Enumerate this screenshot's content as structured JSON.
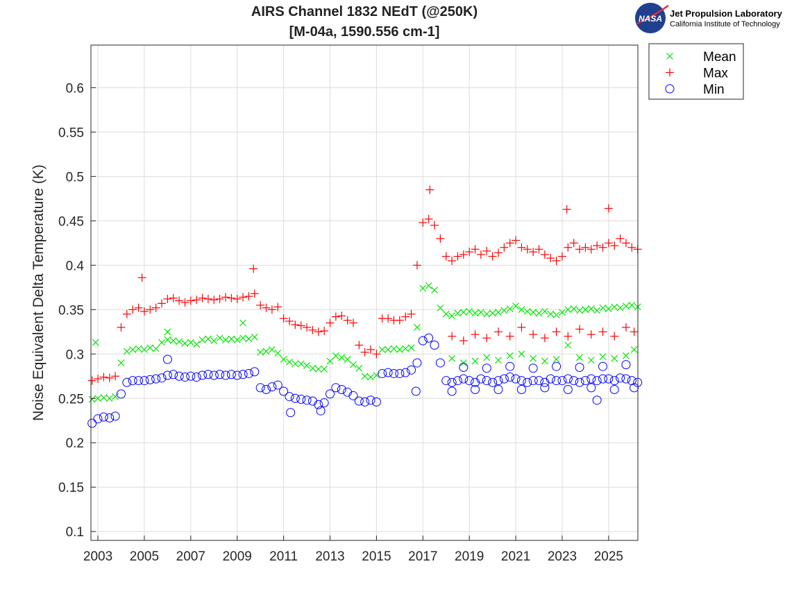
{
  "logo": {
    "org": "Jet Propulsion Laboratory",
    "sub": "California Institute of Technology",
    "badge": "NASA"
  },
  "chart_data": {
    "type": "scatter",
    "title": [
      "AIRS Channel 1832 NEdT (@250K)",
      "[M-04a, 1590.556 cm-1]"
    ],
    "xlabel": "",
    "ylabel": "Noise Equivalent Delta Temperature (K)",
    "xlim": [
      2002.7,
      2026.26
    ],
    "ylim": [
      0.09,
      0.648
    ],
    "xticks": [
      2003,
      2005,
      2007,
      2009,
      2011,
      2013,
      2015,
      2017,
      2019,
      2021,
      2023,
      2025
    ],
    "yticks": [
      0.1,
      0.15,
      0.2,
      0.25,
      0.3,
      0.35,
      0.4,
      0.45,
      0.5,
      0.55,
      0.6
    ],
    "ytick_labels": [
      "0.1",
      "0.15",
      "0.2",
      "0.25",
      "0.3",
      "0.35",
      "0.4",
      "0.45",
      "0.5",
      "0.55",
      "0.6"
    ],
    "grid": true,
    "legend_position": "outside-top-right",
    "x": [
      2002.75,
      2003,
      2003.25,
      2003.5,
      2003.75,
      2004,
      2004.25,
      2004.5,
      2004.75,
      2005,
      2005.25,
      2005.5,
      2005.75,
      2006,
      2006.25,
      2006.5,
      2006.75,
      2007,
      2007.25,
      2007.5,
      2007.75,
      2008,
      2008.25,
      2008.5,
      2008.75,
      2009,
      2009.25,
      2009.5,
      2009.75,
      2010,
      2010.25,
      2010.5,
      2010.75,
      2011,
      2011.25,
      2011.5,
      2011.75,
      2012,
      2012.25,
      2012.5,
      2012.75,
      2013,
      2013.25,
      2013.5,
      2013.75,
      2014,
      2014.25,
      2014.5,
      2014.75,
      2015,
      2015.25,
      2015.5,
      2015.75,
      2016,
      2016.25,
      2016.5,
      2016.75,
      2017,
      2017.25,
      2017.5,
      2017.75,
      2018,
      2018.25,
      2018.5,
      2018.75,
      2019,
      2019.25,
      2019.5,
      2019.75,
      2020,
      2020.25,
      2020.5,
      2020.75,
      2021,
      2021.25,
      2021.5,
      2021.75,
      2022,
      2022.25,
      2022.5,
      2022.75,
      2023,
      2023.25,
      2023.5,
      2023.75,
      2024,
      2024.25,
      2024.5,
      2024.75,
      2025,
      2025.25,
      2025.5,
      2025.75,
      2026,
      2026.25
    ],
    "series": [
      {
        "name": "Mean",
        "marker": "x",
        "color": "#00e600",
        "y": [
          0.249,
          0.25,
          0.251,
          0.25,
          0.252,
          0.29,
          0.303,
          0.305,
          0.306,
          0.305,
          0.307,
          0.306,
          0.313,
          0.316,
          0.315,
          0.314,
          0.312,
          0.313,
          0.311,
          0.316,
          0.317,
          0.315,
          0.318,
          0.316,
          0.317,
          0.316,
          0.318,
          0.317,
          0.319,
          0.302,
          0.303,
          0.305,
          0.301,
          0.294,
          0.291,
          0.289,
          0.289,
          0.287,
          0.284,
          0.283,
          0.283,
          0.292,
          0.298,
          0.296,
          0.294,
          0.288,
          0.284,
          0.275,
          0.274,
          0.276,
          0.305,
          0.305,
          0.306,
          0.305,
          0.306,
          0.307,
          0.33,
          0.374,
          0.377,
          0.372,
          0.352,
          0.345,
          0.343,
          0.346,
          0.347,
          0.348,
          0.346,
          0.347,
          0.345,
          0.346,
          0.347,
          0.349,
          0.351,
          0.354,
          0.35,
          0.348,
          0.347,
          0.346,
          0.348,
          0.345,
          0.344,
          0.347,
          0.35,
          0.351,
          0.349,
          0.35,
          0.351,
          0.349,
          0.352,
          0.351,
          0.353,
          0.352,
          0.354,
          0.355,
          0.353
        ],
        "extra_points": [
          [
            2002.9,
            0.313
          ],
          [
            2006.0,
            0.325
          ],
          [
            2009.25,
            0.335
          ],
          [
            2018.25,
            0.295
          ],
          [
            2018.75,
            0.29
          ],
          [
            2019.25,
            0.292
          ],
          [
            2019.75,
            0.296
          ],
          [
            2020.25,
            0.293
          ],
          [
            2020.75,
            0.298
          ],
          [
            2021.25,
            0.3
          ],
          [
            2021.75,
            0.295
          ],
          [
            2022.25,
            0.292
          ],
          [
            2022.75,
            0.294
          ],
          [
            2023.25,
            0.31
          ],
          [
            2023.75,
            0.296
          ],
          [
            2024.25,
            0.293
          ],
          [
            2024.75,
            0.297
          ],
          [
            2025.25,
            0.295
          ],
          [
            2025.75,
            0.298
          ],
          [
            2026.1,
            0.305
          ]
        ]
      },
      {
        "name": "Max",
        "marker": "+",
        "color": "#ff0000",
        "y": [
          0.27,
          0.272,
          0.274,
          0.273,
          0.275,
          0.33,
          0.345,
          0.35,
          0.352,
          0.348,
          0.35,
          0.352,
          0.357,
          0.362,
          0.363,
          0.36,
          0.358,
          0.36,
          0.361,
          0.363,
          0.362,
          0.361,
          0.362,
          0.364,
          0.363,
          0.362,
          0.364,
          0.365,
          0.368,
          0.355,
          0.352,
          0.35,
          0.353,
          0.34,
          0.337,
          0.333,
          0.332,
          0.33,
          0.327,
          0.325,
          0.326,
          0.335,
          0.342,
          0.343,
          0.338,
          0.335,
          0.31,
          0.302,
          0.305,
          0.3,
          0.34,
          0.34,
          0.338,
          0.338,
          0.342,
          0.345,
          0.4,
          0.448,
          0.452,
          0.445,
          0.43,
          0.41,
          0.405,
          0.41,
          0.412,
          0.415,
          0.418,
          0.412,
          0.416,
          0.41,
          0.414,
          0.42,
          0.425,
          0.428,
          0.42,
          0.418,
          0.415,
          0.418,
          0.412,
          0.408,
          0.405,
          0.41,
          0.42,
          0.425,
          0.418,
          0.42,
          0.418,
          0.422,
          0.42,
          0.425,
          0.422,
          0.43,
          0.425,
          0.42,
          0.418
        ],
        "extra_points": [
          [
            2004.9,
            0.386
          ],
          [
            2009.7,
            0.396
          ],
          [
            2017.3,
            0.485
          ],
          [
            2023.2,
            0.463
          ],
          [
            2025.0,
            0.464
          ],
          [
            2018.25,
            0.32
          ],
          [
            2018.75,
            0.315
          ],
          [
            2019.25,
            0.322
          ],
          [
            2019.75,
            0.318
          ],
          [
            2020.25,
            0.325
          ],
          [
            2020.75,
            0.32
          ],
          [
            2021.25,
            0.33
          ],
          [
            2021.75,
            0.322
          ],
          [
            2022.25,
            0.318
          ],
          [
            2022.75,
            0.325
          ],
          [
            2023.25,
            0.32
          ],
          [
            2023.75,
            0.328
          ],
          [
            2024.25,
            0.322
          ],
          [
            2024.75,
            0.325
          ],
          [
            2025.25,
            0.32
          ],
          [
            2025.75,
            0.33
          ],
          [
            2026.1,
            0.325
          ]
        ]
      },
      {
        "name": "Min",
        "marker": "o",
        "color": "#0000ff",
        "y": [
          0.222,
          0.227,
          0.229,
          0.228,
          0.23,
          0.255,
          0.268,
          0.27,
          0.27,
          0.27,
          0.271,
          0.272,
          0.273,
          0.276,
          0.277,
          0.275,
          0.274,
          0.275,
          0.274,
          0.276,
          0.277,
          0.276,
          0.277,
          0.276,
          0.277,
          0.276,
          0.277,
          0.278,
          0.28,
          0.262,
          0.26,
          0.263,
          0.265,
          0.258,
          0.252,
          0.25,
          0.249,
          0.248,
          0.247,
          0.243,
          0.245,
          0.255,
          0.262,
          0.26,
          0.257,
          0.253,
          0.247,
          0.246,
          0.248,
          0.246,
          0.278,
          0.279,
          0.278,
          0.278,
          0.279,
          0.282,
          0.29,
          0.315,
          0.318,
          0.31,
          0.29,
          0.27,
          0.268,
          0.27,
          0.272,
          0.27,
          0.268,
          0.272,
          0.27,
          0.268,
          0.27,
          0.272,
          0.274,
          0.272,
          0.27,
          0.268,
          0.27,
          0.27,
          0.268,
          0.272,
          0.27,
          0.27,
          0.272,
          0.27,
          0.268,
          0.27,
          0.272,
          0.27,
          0.272,
          0.272,
          0.27,
          0.273,
          0.272,
          0.27,
          0.268
        ],
        "extra_points": [
          [
            2006.0,
            0.294
          ],
          [
            2016.7,
            0.258
          ],
          [
            2024.5,
            0.248
          ],
          [
            2011.3,
            0.234
          ],
          [
            2012.6,
            0.236
          ],
          [
            2018.25,
            0.258
          ],
          [
            2018.75,
            0.285
          ],
          [
            2019.25,
            0.26
          ],
          [
            2019.75,
            0.284
          ],
          [
            2020.25,
            0.26
          ],
          [
            2020.75,
            0.286
          ],
          [
            2021.25,
            0.26
          ],
          [
            2021.75,
            0.284
          ],
          [
            2022.25,
            0.262
          ],
          [
            2022.75,
            0.286
          ],
          [
            2023.25,
            0.26
          ],
          [
            2023.75,
            0.285
          ],
          [
            2024.25,
            0.262
          ],
          [
            2024.75,
            0.286
          ],
          [
            2025.25,
            0.26
          ],
          [
            2025.75,
            0.288
          ],
          [
            2026.1,
            0.262
          ]
        ]
      }
    ]
  }
}
